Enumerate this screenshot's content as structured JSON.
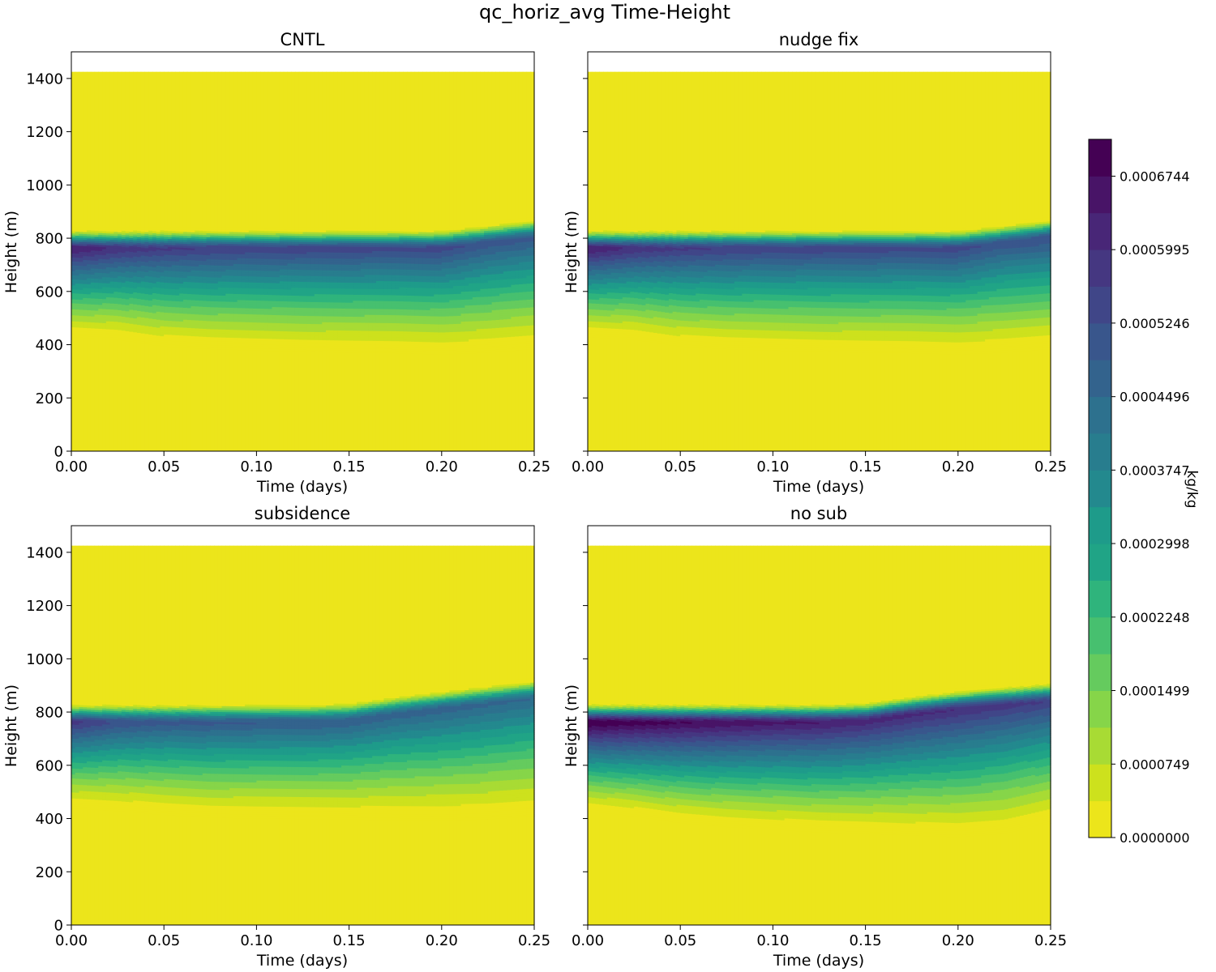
{
  "figure": {
    "title": "qc_horiz_avg Time-Height",
    "colorbar": {
      "label": "kg/kg",
      "ticks": [
        "0.0000000",
        "0.0000749",
        "0.0001499",
        "0.0002248",
        "0.0002998",
        "0.0003747",
        "0.0004496",
        "0.0005246",
        "0.0005995",
        "0.0006744"
      ],
      "levels": 19,
      "max": 0.000712,
      "colors": [
        "#ece51b",
        "#cde11d",
        "#a8db34",
        "#86d549",
        "#65cb5e",
        "#47c06f",
        "#2fb47c",
        "#20a486",
        "#1e9b8a",
        "#23898e",
        "#287d8e",
        "#2d718e",
        "#33638d",
        "#39568c",
        "#404688",
        "#453781",
        "#482677",
        "#481467",
        "#440154"
      ]
    }
  },
  "chart_data": [
    {
      "type": "heatmap",
      "title": "CNTL",
      "xlabel": "Time (days)",
      "ylabel": "Height (m)",
      "xlim": [
        0,
        0.25
      ],
      "ylim": [
        0,
        1500
      ],
      "xticks": [
        "0.00",
        "0.05",
        "0.10",
        "0.15",
        "0.20",
        "0.25"
      ],
      "yticks": [
        "0",
        "200",
        "400",
        "600",
        "800",
        "1000",
        "1200",
        "1400"
      ],
      "domain_top_m": 1425,
      "times": [
        0,
        0.025,
        0.05,
        0.075,
        0.1,
        0.125,
        0.15,
        0.175,
        0.2,
        0.225,
        0.25
      ],
      "cloud_top_m": [
        840,
        840,
        840,
        840,
        840,
        840,
        840,
        840,
        840,
        860,
        880
      ],
      "cloud_base_m": [
        430,
        420,
        395,
        385,
        380,
        375,
        372,
        370,
        365,
        372,
        385
      ],
      "qc_max_kgkg": [
        0.00064,
        0.00059,
        0.00057,
        0.00056,
        0.00055,
        0.00055,
        0.000545,
        0.00054,
        0.00054,
        0.00051,
        0.0005
      ]
    },
    {
      "type": "heatmap",
      "title": "nudge fix",
      "xlabel": "Time (days)",
      "ylabel": "Height (m)",
      "xlim": [
        0,
        0.25
      ],
      "ylim": [
        0,
        1500
      ],
      "xticks": [
        "0.00",
        "0.05",
        "0.10",
        "0.15",
        "0.20",
        "0.25"
      ],
      "yticks": [
        "0",
        "200",
        "400",
        "600",
        "800",
        "1000",
        "1200",
        "1400"
      ],
      "domain_top_m": 1425,
      "times": [
        0,
        0.025,
        0.05,
        0.075,
        0.1,
        0.125,
        0.15,
        0.175,
        0.2,
        0.225,
        0.25
      ],
      "cloud_top_m": [
        840,
        840,
        840,
        840,
        840,
        840,
        840,
        840,
        840,
        860,
        880
      ],
      "cloud_base_m": [
        430,
        420,
        395,
        385,
        380,
        375,
        372,
        370,
        365,
        372,
        385
      ],
      "qc_max_kgkg": [
        0.00064,
        0.00059,
        0.00057,
        0.00056,
        0.00055,
        0.00055,
        0.000545,
        0.00054,
        0.00054,
        0.00051,
        0.00052
      ]
    },
    {
      "type": "heatmap",
      "title": "subsidence",
      "xlabel": "Time (days)",
      "ylabel": "Height (m)",
      "xlim": [
        0,
        0.25
      ],
      "ylim": [
        0,
        1500
      ],
      "xticks": [
        "0.00",
        "0.05",
        "0.10",
        "0.15",
        "0.20",
        "0.25"
      ],
      "yticks": [
        "0",
        "200",
        "400",
        "600",
        "800",
        "1000",
        "1200",
        "1400"
      ],
      "domain_top_m": 1425,
      "times": [
        0,
        0.025,
        0.05,
        0.075,
        0.1,
        0.125,
        0.15,
        0.175,
        0.2,
        0.225,
        0.25
      ],
      "cloud_top_m": [
        840,
        840,
        840,
        840,
        840,
        840,
        845,
        870,
        890,
        910,
        930
      ],
      "cloud_base_m": [
        440,
        430,
        415,
        405,
        402,
        400,
        398,
        396,
        395,
        398,
        410
      ],
      "qc_max_kgkg": [
        0.00058,
        0.00052,
        0.0005,
        0.0005,
        0.00049,
        0.00049,
        0.00048,
        0.00047,
        0.00047,
        0.00046,
        0.00045
      ]
    },
    {
      "type": "heatmap",
      "title": "no sub",
      "xlabel": "Time (days)",
      "ylabel": "Height (m)",
      "xlim": [
        0,
        0.25
      ],
      "ylim": [
        0,
        1500
      ],
      "xticks": [
        "0.00",
        "0.05",
        "0.10",
        "0.15",
        "0.20",
        "0.25"
      ],
      "yticks": [
        "0",
        "200",
        "400",
        "600",
        "800",
        "1000",
        "1200",
        "1400"
      ],
      "domain_top_m": 1425,
      "times": [
        0,
        0.025,
        0.05,
        0.075,
        0.1,
        0.125,
        0.15,
        0.175,
        0.2,
        0.225,
        0.25
      ],
      "cloud_top_m": [
        840,
        840,
        840,
        840,
        840,
        840,
        845,
        870,
        890,
        905,
        920
      ],
      "cloud_base_m": [
        430,
        410,
        385,
        370,
        360,
        350,
        345,
        338,
        332,
        345,
        385
      ],
      "qc_max_kgkg": [
        0.000712,
        0.000695,
        0.00068,
        0.000665,
        0.00065,
        0.00064,
        0.00062,
        0.00061,
        0.0006,
        0.00058,
        0.00056
      ]
    }
  ]
}
